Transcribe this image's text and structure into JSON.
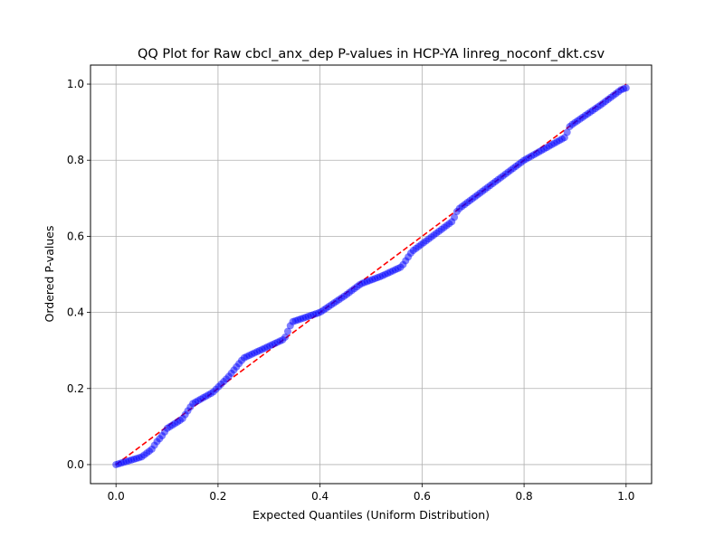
{
  "chart_data": {
    "type": "scatter",
    "title": "QQ Plot for Raw cbcl_anx_dep P-values in HCP-YA linreg_noconf_dkt.csv",
    "xlabel": "Expected Quantiles (Uniform Distribution)",
    "ylabel": "Ordered P-values",
    "xlim": [
      -0.05,
      1.05
    ],
    "ylim": [
      -0.05,
      1.05
    ],
    "xticks": [
      "0.0",
      "0.2",
      "0.4",
      "0.6",
      "0.8",
      "1.0"
    ],
    "yticks": [
      "0.0",
      "0.2",
      "0.4",
      "0.6",
      "0.8",
      "1.0"
    ],
    "xtick_values": [
      0.0,
      0.2,
      0.4,
      0.6,
      0.8,
      1.0
    ],
    "ytick_values": [
      0.0,
      0.2,
      0.4,
      0.6,
      0.8,
      1.0
    ],
    "grid": true,
    "point_color": "#0000ff",
    "reference_line": {
      "style": "dashed",
      "color": "#ff0000",
      "from": [
        0,
        0
      ],
      "to": [
        1,
        1
      ]
    },
    "anchors": [
      [
        0.0,
        0.0
      ],
      [
        0.02,
        0.008
      ],
      [
        0.05,
        0.02
      ],
      [
        0.07,
        0.04
      ],
      [
        0.08,
        0.06
      ],
      [
        0.09,
        0.075
      ],
      [
        0.1,
        0.095
      ],
      [
        0.13,
        0.12
      ],
      [
        0.15,
        0.16
      ],
      [
        0.19,
        0.19
      ],
      [
        0.22,
        0.23
      ],
      [
        0.25,
        0.28
      ],
      [
        0.29,
        0.305
      ],
      [
        0.33,
        0.33
      ],
      [
        0.345,
        0.375
      ],
      [
        0.4,
        0.4
      ],
      [
        0.45,
        0.445
      ],
      [
        0.48,
        0.475
      ],
      [
        0.52,
        0.495
      ],
      [
        0.56,
        0.52
      ],
      [
        0.58,
        0.56
      ],
      [
        0.62,
        0.6
      ],
      [
        0.66,
        0.64
      ],
      [
        0.67,
        0.67
      ],
      [
        0.73,
        0.73
      ],
      [
        0.8,
        0.8
      ],
      [
        0.84,
        0.83
      ],
      [
        0.88,
        0.86
      ],
      [
        0.89,
        0.89
      ],
      [
        0.95,
        0.945
      ],
      [
        0.99,
        0.985
      ],
      [
        1.0,
        0.99
      ]
    ],
    "n_points": 200
  }
}
